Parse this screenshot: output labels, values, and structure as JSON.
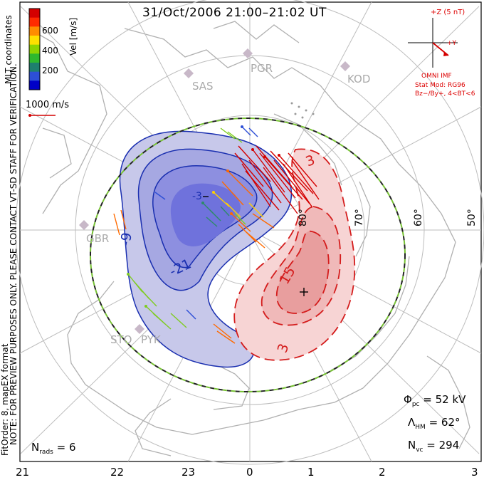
{
  "header": {
    "title": "31/Oct/2006 21:00–21:02 UT"
  },
  "colorbar": {
    "axis_label": "Vel [m/s]",
    "ticks": [
      "600",
      "400",
      "200"
    ],
    "colors": [
      "#d40000",
      "#ff2a00",
      "#ff8c00",
      "#ffe000",
      "#8fd400",
      "#2eb82e",
      "#1e7f6e",
      "#2d4fd6",
      "#0000c8"
    ]
  },
  "side_text": {
    "mlt_coords": "MLT coordinates",
    "preview_note": "NOTE: FOR PREVIEW PURPOSES ONLY. PLEASE CONTACT VT-SD STAFF FOR VERIFICATION.",
    "fit_order": "FitOrder: 8, mapEX format"
  },
  "ref_vector": {
    "label": "1000 m/s"
  },
  "imf": {
    "z_label": "+Z (5 nT)",
    "y_label": "+Y",
    "source": "OMNI IMF",
    "stat_mod": "Stat Mod: RG96",
    "condition": "Bz−/By+, 4<BT<6"
  },
  "stations": [
    "PGR",
    "SAS",
    "KOD",
    "GBR",
    "STO",
    "PYK"
  ],
  "contours": {
    "neg_labels": [
      "-21",
      "-9",
      "-3"
    ],
    "pos_labels": [
      "15",
      "3",
      "3"
    ]
  },
  "latitudes": [
    "80°",
    "70°",
    "60°",
    "50°"
  ],
  "mlt_hours": [
    "21",
    "22",
    "23",
    "0",
    "1",
    "2",
    "3"
  ],
  "stats": {
    "phi_pc": "= 52 kV",
    "lambda_hm": "= 62°",
    "n_vc": "= 294",
    "n_rads": "= 6"
  },
  "colors": {
    "negative": "#1a2fb0",
    "positive": "#d41c1c",
    "boundary_a": "#222222",
    "boundary_b": "#77c234"
  }
}
